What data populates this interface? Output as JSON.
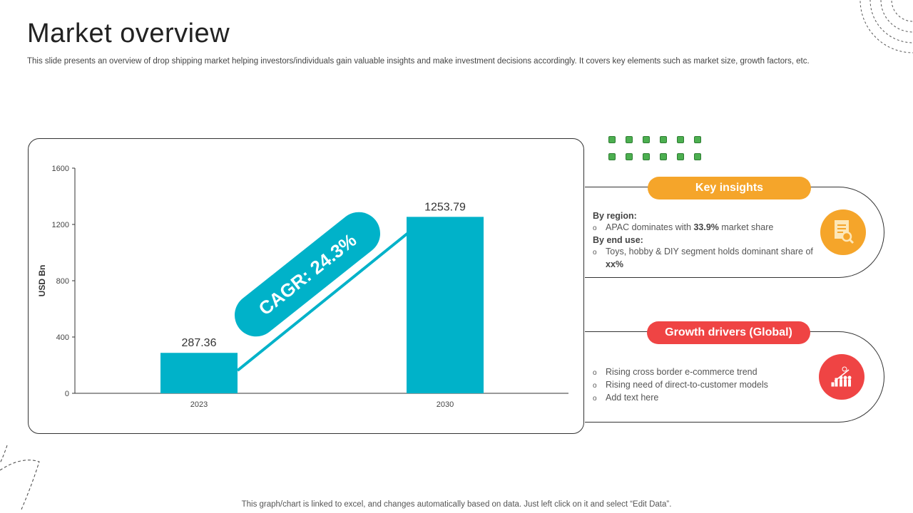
{
  "header": {
    "title": "Market overview",
    "subtitle": "This slide presents an overview of drop shipping market helping investors/individuals gain valuable insights and make investment decisions accordingly. It covers key elements such as market size, growth factors, etc."
  },
  "footer": "This graph/chart is linked to excel,  and changes automatically based on data. Just left click on it and select “Edit Data”.",
  "chart_data": {
    "type": "bar",
    "categories": [
      "2023",
      "2030"
    ],
    "values": [
      287.36,
      1253.79
    ],
    "value_labels": [
      "287.36",
      "1253.79"
    ],
    "ylabel": "USD Bn",
    "ylim": [
      0,
      1600
    ],
    "yticks": [
      "0",
      "400",
      "800",
      "1200",
      "1600"
    ],
    "grid": false,
    "annotation": "CAGR: 24.3%",
    "bar_color": "#00b2c9"
  },
  "key_insights": {
    "title": "Key insights",
    "color": "#f5a52a",
    "icon": "document-search-icon",
    "region_label": "By region:",
    "region_pre": "APAC dominates with ",
    "region_bold": "33.9%",
    "region_post": " market share",
    "enduse_label": "By end use:",
    "enduse_pre": "Toys, hobby & DIY segment holds dominant share of ",
    "enduse_bold": "xx%"
  },
  "growth_drivers": {
    "title": "Growth drivers (Global)",
    "color": "#ef4444",
    "icon": "growth-chart-people-icon",
    "items": [
      "Rising cross border e-commerce trend",
      "Rising need of direct-to-customer models",
      "Add text here"
    ]
  }
}
